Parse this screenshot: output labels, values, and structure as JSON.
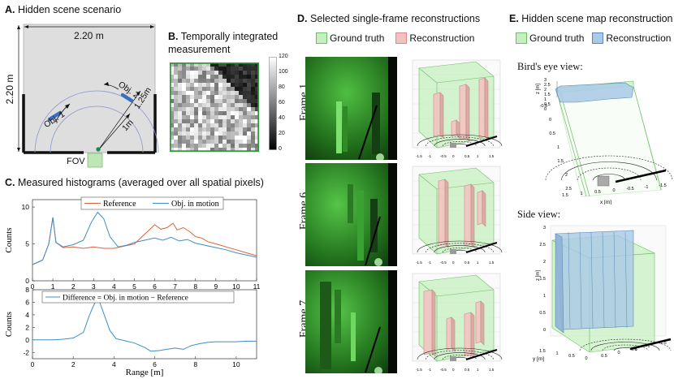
{
  "panel_a": {
    "letter": "A.",
    "title": "Hidden scene scenario",
    "width_label": "2.20 m",
    "height_label": "2.20 m",
    "obj1_label": "Obj. 1",
    "obj2_label": "Obj. 2",
    "r1_label": "1m",
    "r2_label": "1.25m",
    "fov_label": "FOV"
  },
  "panel_b": {
    "letter": "B.",
    "title_line1": "Temporally integrated",
    "title_line2": "measurement",
    "colorbar_ticks": [
      "120",
      "100",
      "80",
      "60",
      "40",
      "20",
      "0"
    ],
    "colorbar_range": [
      0,
      120
    ]
  },
  "panel_c": {
    "letter": "C.",
    "title": "Measured histograms (averaged over all spatial pixels)",
    "top_ylabel": "Counts",
    "bottom_ylabel": "Counts",
    "xlabel": "Range [m]",
    "top_yticks": [
      "10",
      "5",
      "0"
    ],
    "bottom_yticks": [
      "8",
      "6",
      "4",
      "2",
      "0",
      "-2"
    ],
    "xticks": [
      "0",
      "1",
      "2",
      "3",
      "4",
      "5",
      "6",
      "7",
      "8",
      "9",
      "10",
      "11"
    ],
    "bottom_xticks": [
      "0",
      "2",
      "4",
      "6",
      "8",
      "10"
    ],
    "legend_top": [
      "Reference",
      "Obj. in motion"
    ],
    "legend_bottom": "Difference = Obj. in motion − Reference"
  },
  "chart_data": [
    {
      "type": "line",
      "xlim": [
        0,
        11
      ],
      "ylim": [
        0,
        11
      ],
      "ylabel": "Counts",
      "legend_position": "top",
      "grid": false,
      "series": [
        {
          "name": "Reference",
          "color": "#d9643a",
          "points": [
            [
              0,
              2.2
            ],
            [
              0.5,
              2.8
            ],
            [
              0.8,
              5
            ],
            [
              1.0,
              8.6
            ],
            [
              1.15,
              5.2
            ],
            [
              1.5,
              4.5
            ],
            [
              2,
              4.6
            ],
            [
              2.5,
              4.4
            ],
            [
              3,
              4.6
            ],
            [
              3.5,
              4.4
            ],
            [
              4,
              4.4
            ],
            [
              4.5,
              4.7
            ],
            [
              5,
              5.0
            ],
            [
              5.5,
              6.3
            ],
            [
              6,
              7.6
            ],
            [
              6.3,
              7.0
            ],
            [
              6.6,
              7.2
            ],
            [
              6.9,
              7.8
            ],
            [
              7.1,
              6.9
            ],
            [
              7.4,
              7.2
            ],
            [
              7.7,
              6.7
            ],
            [
              8,
              6.0
            ],
            [
              8.3,
              5.8
            ],
            [
              8.6,
              5.3
            ],
            [
              9,
              5.0
            ],
            [
              9.5,
              4.6
            ],
            [
              10,
              4.2
            ],
            [
              10.5,
              3.8
            ],
            [
              11,
              3.4
            ]
          ]
        },
        {
          "name": "Obj. in motion",
          "color": "#3d8fc4",
          "points": [
            [
              0,
              2.2
            ],
            [
              0.5,
              2.8
            ],
            [
              0.8,
              5
            ],
            [
              1.0,
              8.6
            ],
            [
              1.15,
              5.2
            ],
            [
              1.5,
              4.6
            ],
            [
              2,
              4.9
            ],
            [
              2.5,
              5.5
            ],
            [
              2.9,
              8.0
            ],
            [
              3.2,
              9.3
            ],
            [
              3.5,
              8.4
            ],
            [
              3.8,
              6.0
            ],
            [
              4.2,
              4.6
            ],
            [
              4.6,
              4.8
            ],
            [
              5,
              5.2
            ],
            [
              5.5,
              5.5
            ],
            [
              6,
              5.8
            ],
            [
              6.4,
              5.5
            ],
            [
              6.8,
              5.9
            ],
            [
              7.2,
              5.4
            ],
            [
              7.6,
              5.6
            ],
            [
              8,
              5.1
            ],
            [
              8.5,
              4.8
            ],
            [
              9,
              4.5
            ],
            [
              9.5,
              4.2
            ],
            [
              10,
              3.8
            ],
            [
              10.5,
              3.5
            ],
            [
              11,
              3.2
            ]
          ]
        }
      ]
    },
    {
      "type": "line",
      "xlim": [
        0,
        11
      ],
      "ylim": [
        -3,
        8
      ],
      "ylabel": "Counts",
      "xlabel": "Range [m]",
      "legend_position": "top",
      "grid": false,
      "series": [
        {
          "name": "Difference = Obj. in motion − Reference",
          "color": "#3d8fc4",
          "points": [
            [
              0,
              0
            ],
            [
              0.5,
              0
            ],
            [
              1.0,
              0
            ],
            [
              1.5,
              0.1
            ],
            [
              2,
              0.3
            ],
            [
              2.5,
              1.2
            ],
            [
              2.8,
              4.0
            ],
            [
              3.1,
              6.2
            ],
            [
              3.3,
              6.0
            ],
            [
              3.5,
              4.2
            ],
            [
              3.8,
              1.5
            ],
            [
              4.1,
              0.2
            ],
            [
              4.5,
              -0.1
            ],
            [
              5,
              -0.5
            ],
            [
              5.5,
              -1.2
            ],
            [
              5.8,
              -1.8
            ],
            [
              6.2,
              -1.7
            ],
            [
              6.6,
              -1.5
            ],
            [
              7,
              -1.3
            ],
            [
              7.4,
              -1.5
            ],
            [
              7.8,
              -0.9
            ],
            [
              8.2,
              -0.6
            ],
            [
              8.6,
              -0.4
            ],
            [
              9,
              -0.3
            ],
            [
              9.5,
              -0.3
            ],
            [
              10,
              -0.3
            ],
            [
              10.5,
              -0.2
            ],
            [
              11,
              -0.2
            ]
          ]
        }
      ]
    }
  ],
  "panel_d": {
    "letter": "D.",
    "title": "Selected single-frame reconstructions",
    "legend_gt": "Ground truth",
    "legend_rec": "Reconstruction",
    "frames": [
      "Frame 1",
      "Frame 6",
      "Frame 7"
    ],
    "colors": {
      "gt": "#c6efbf",
      "rec": "#f3c2c0"
    }
  },
  "panel_e": {
    "letter": "E.",
    "title": "Hidden scene map reconstruction",
    "legend_gt": "Ground truth",
    "legend_rec": "Reconstruction",
    "birds_eye_label": "Bird's eye view:",
    "side_view_label": "Side view:",
    "birds_z_ticks": [
      "3",
      "2.5",
      "2",
      "1.5",
      "1",
      "0.5",
      "0"
    ],
    "birds_x_ticks": [
      "1.5",
      "1",
      "0.5",
      "0",
      "-0.5",
      "-1",
      "-1.5"
    ],
    "birds_y_ticks": [
      "-0.5",
      "0",
      "0.5",
      "1",
      "1.5",
      "2",
      "2.5"
    ],
    "side_z_ticks": [
      "3",
      "2.5",
      "2",
      "1.5",
      "1",
      "0.5",
      "0"
    ],
    "side_x_ticks": [
      "0.5",
      "0",
      "-0.5",
      "-1",
      "-1.5"
    ],
    "side_y_ticks": [
      "1.5",
      "1",
      "0.5",
      "0"
    ],
    "axis_z": "z [m]",
    "axis_x": "x [m]",
    "axis_y": "y [m]",
    "colors": {
      "gt": "#c6efbf",
      "rec": "#a9c9e6"
    }
  }
}
